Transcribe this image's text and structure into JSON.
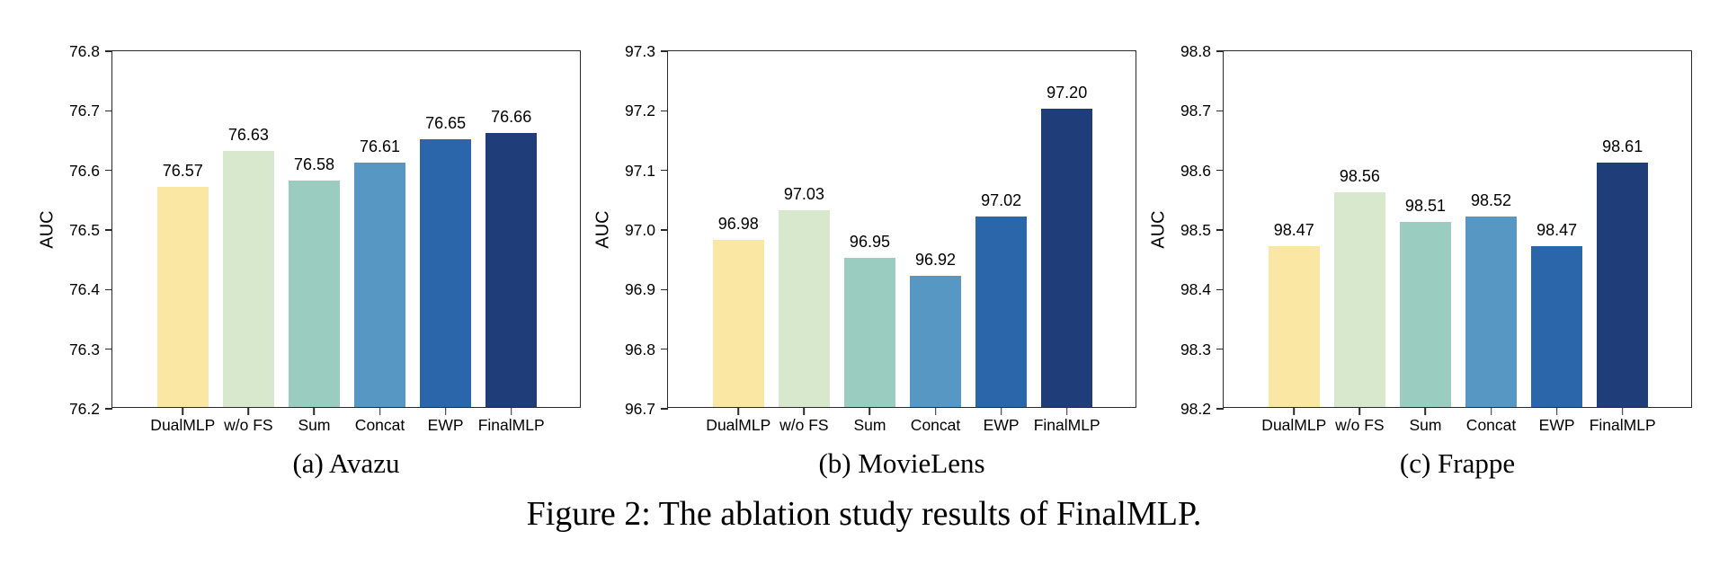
{
  "figure": {
    "caption": "Figure 2: The ablation study results of FinalMLP."
  },
  "style": {
    "palette": [
      "#FAE7A4",
      "#D7E8CC",
      "#9ACDBF",
      "#5697C4",
      "#2B66AB",
      "#1F3E79"
    ],
    "axis_color": "#2a2a2a"
  },
  "chart_data": [
    {
      "type": "bar",
      "subtitle": "(a) Avazu",
      "ylabel": "AUC",
      "categories": [
        "DualMLP",
        "w/o FS",
        "Sum",
        "Concat",
        "EWP",
        "FinalMLP"
      ],
      "values": [
        76.57,
        76.63,
        76.58,
        76.61,
        76.65,
        76.66
      ],
      "bar_labels": [
        "76.57",
        "76.63",
        "76.58",
        "76.61",
        "76.65",
        "76.66"
      ],
      "ylim": [
        76.2,
        76.8
      ],
      "yticks": [
        "76.2",
        "76.3",
        "76.4",
        "76.5",
        "76.6",
        "76.7",
        "76.8"
      ],
      "grid": false,
      "legend": "none"
    },
    {
      "type": "bar",
      "subtitle": "(b) MovieLens",
      "ylabel": "AUC",
      "categories": [
        "DualMLP",
        "w/o FS",
        "Sum",
        "Concat",
        "EWP",
        "FinalMLP"
      ],
      "values": [
        96.98,
        97.03,
        96.95,
        96.92,
        97.02,
        97.2
      ],
      "bar_labels": [
        "96.98",
        "97.03",
        "96.95",
        "96.92",
        "97.02",
        "97.20"
      ],
      "ylim": [
        96.7,
        97.3
      ],
      "yticks": [
        "96.7",
        "96.8",
        "96.9",
        "97.0",
        "97.1",
        "97.2",
        "97.3"
      ],
      "grid": false,
      "legend": "none"
    },
    {
      "type": "bar",
      "subtitle": "(c) Frappe",
      "ylabel": "AUC",
      "categories": [
        "DualMLP",
        "w/o FS",
        "Sum",
        "Concat",
        "EWP",
        "FinalMLP"
      ],
      "values": [
        98.47,
        98.56,
        98.51,
        98.52,
        98.47,
        98.61
      ],
      "bar_labels": [
        "98.47",
        "98.56",
        "98.51",
        "98.52",
        "98.47",
        "98.61"
      ],
      "ylim": [
        98.2,
        98.8
      ],
      "yticks": [
        "98.2",
        "98.3",
        "98.4",
        "98.5",
        "98.6",
        "98.7",
        "98.8"
      ],
      "grid": false,
      "legend": "none"
    }
  ]
}
